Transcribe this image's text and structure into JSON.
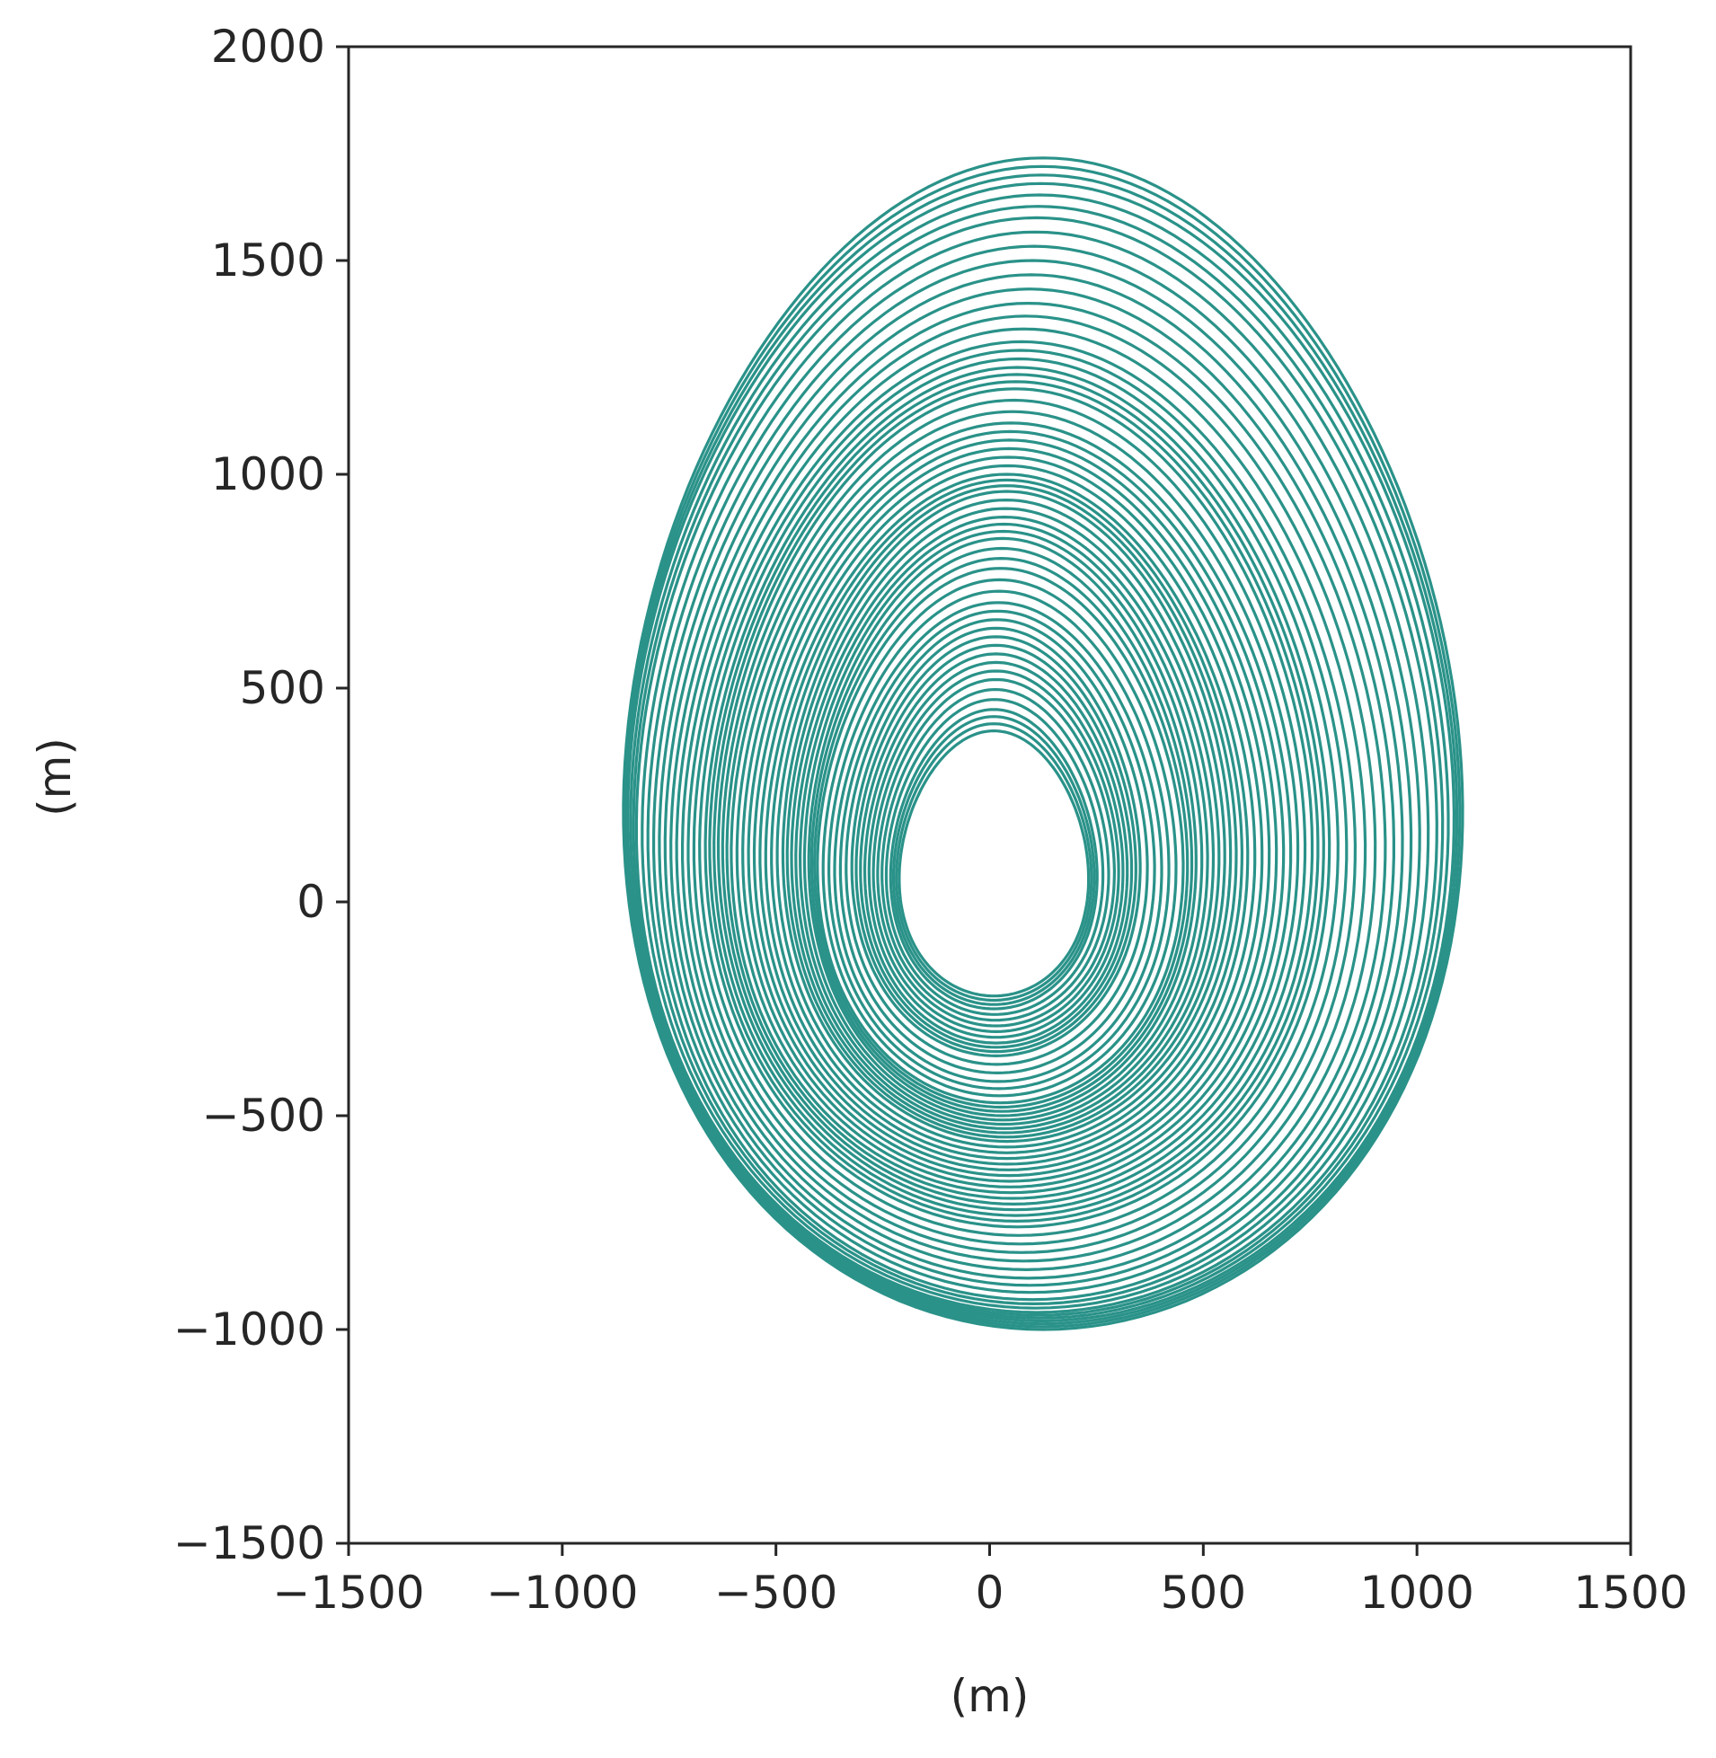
{
  "chart_data": {
    "type": "line",
    "title": "",
    "xlabel": "(m)",
    "ylabel": "(m)",
    "xlim": [
      -1500,
      1500
    ],
    "ylim": [
      -1500,
      2000
    ],
    "xticks": [
      -1500,
      -1000,
      -500,
      0,
      500,
      1000,
      1500
    ],
    "yticks": [
      -1500,
      -1000,
      -500,
      0,
      500,
      1000,
      1500,
      2000
    ],
    "xtick_labels": [
      "−1500",
      "−1000",
      "−500",
      "0",
      "500",
      "1000",
      "1500"
    ],
    "ytick_labels": [
      "−1500",
      "−1000",
      "−500",
      "0",
      "500",
      "1000",
      "1500",
      "2000"
    ],
    "grid": false,
    "line_color": "#2a9289",
    "series": [
      {
        "description_of_shape": "",
        "loops": [
          {
            "x_min": -210,
            "x_max": 230,
            "y_min": -220,
            "y_max": 400
          },
          {
            "x_min": -230,
            "x_max": 250,
            "y_min": -250,
            "y_max": 450
          },
          {
            "x_min": -260,
            "x_max": 290,
            "y_min": -290,
            "y_max": 520
          },
          {
            "x_min": -290,
            "x_max": 320,
            "y_min": -330,
            "y_max": 580
          },
          {
            "x_min": -320,
            "x_max": 350,
            "y_min": -360,
            "y_max": 640
          },
          {
            "x_min": -360,
            "x_max": 400,
            "y_min": -420,
            "y_max": 700
          },
          {
            "x_min": -400,
            "x_max": 450,
            "y_min": -470,
            "y_max": 780
          },
          {
            "x_min": -420,
            "x_max": 480,
            "y_min": -500,
            "y_max": 850
          },
          {
            "x_min": -450,
            "x_max": 520,
            "y_min": -530,
            "y_max": 900
          },
          {
            "x_min": -480,
            "x_max": 560,
            "y_min": -560,
            "y_max": 960
          },
          {
            "x_min": -520,
            "x_max": 600,
            "y_min": -600,
            "y_max": 1000
          },
          {
            "x_min": -560,
            "x_max": 650,
            "y_min": -640,
            "y_max": 1060
          },
          {
            "x_min": -600,
            "x_max": 700,
            "y_min": -680,
            "y_max": 1120
          },
          {
            "x_min": -630,
            "x_max": 750,
            "y_min": -720,
            "y_max": 1200
          },
          {
            "x_min": -660,
            "x_max": 790,
            "y_min": -760,
            "y_max": 1250
          },
          {
            "x_min": -700,
            "x_max": 850,
            "y_min": -820,
            "y_max": 1310
          },
          {
            "x_min": -740,
            "x_max": 920,
            "y_min": -880,
            "y_max": 1400
          },
          {
            "x_min": -780,
            "x_max": 980,
            "y_min": -930,
            "y_max": 1500
          },
          {
            "x_min": -820,
            "x_max": 1040,
            "y_min": -960,
            "y_max": 1600
          },
          {
            "x_min": -840,
            "x_max": 1080,
            "y_min": -980,
            "y_max": 1680
          },
          {
            "x_min": -850,
            "x_max": 1100,
            "y_min": -1000,
            "y_max": 1740
          }
        ]
      }
    ]
  }
}
